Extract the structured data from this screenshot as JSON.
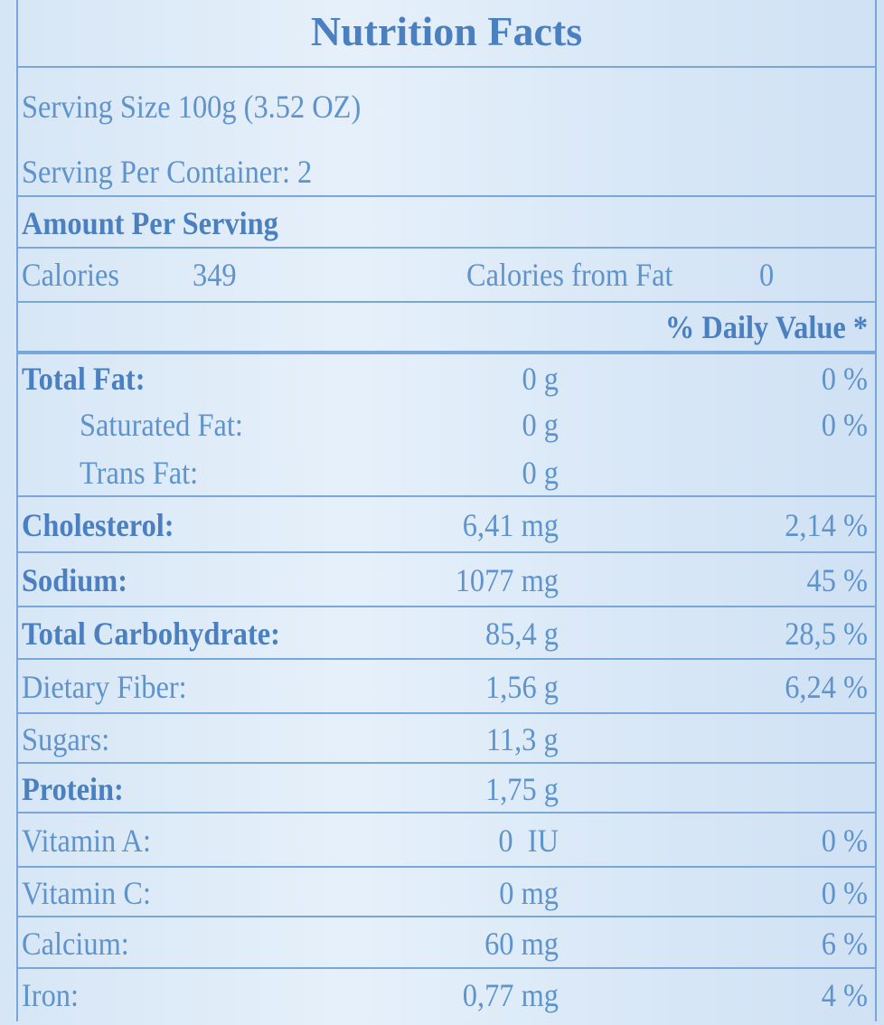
{
  "title": "Nutrition Facts",
  "serving_size": "Serving Size 100g (3.52 OZ)",
  "servings_per_container": "Serving Per Container: 2",
  "amount_per_serving": "Amount Per Serving",
  "calories": {
    "label": "Calories",
    "value": "349",
    "fat_label": "Calories from Fat",
    "fat_value": "0"
  },
  "daily_value_header": "% Daily Value *",
  "rows": [
    [
      "Total Fat:",
      "0 g",
      "0 %"
    ],
    [
      "Saturated Fat:",
      "0 g",
      "0 %"
    ],
    [
      "Trans Fat:",
      "0 g"
    ],
    [
      "Cholesterol:",
      "6,41 mg",
      "2,14 %"
    ],
    [
      "Sodium:",
      "1077 mg",
      "45 %"
    ],
    [
      "Total Carbohydrate:",
      "85,4 g",
      "28,5 %"
    ],
    [
      "Dietary Fiber:",
      "1,56 g",
      "6,24 %"
    ],
    [
      "Sugars:",
      "11,3 g"
    ],
    [
      "Protein:",
      "1,75 g"
    ],
    [
      "Vitamin A:",
      "0  IU",
      "0 %"
    ],
    [
      "Vitamin C:",
      "0 mg",
      "0 %"
    ],
    [
      "Calcium:",
      "60 mg",
      "6 %"
    ],
    [
      "Iron:",
      "0,77 mg",
      "4 %"
    ]
  ]
}
